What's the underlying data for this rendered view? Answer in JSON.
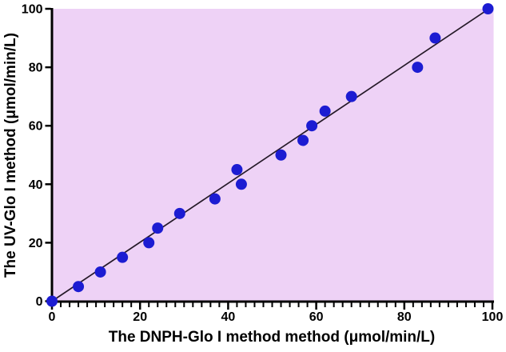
{
  "chart_data": {
    "type": "scatter",
    "title": "",
    "xlabel": "The DNPH-Glo I method method (μmol/min/L)",
    "ylabel": "The UV-Glo I method (μmol/min/L)",
    "x": [
      0,
      6,
      11,
      16,
      22,
      24,
      29,
      37,
      42,
      43,
      52,
      57,
      59,
      62,
      68,
      83,
      87,
      99
    ],
    "y": [
      0,
      5,
      10,
      15,
      20,
      25,
      30,
      35,
      45,
      40,
      50,
      55,
      60,
      65,
      70,
      80,
      90,
      100
    ],
    "xlim": [
      0,
      100
    ],
    "ylim": [
      0,
      100
    ],
    "x_major_ticks": [
      0,
      20,
      40,
      60,
      80,
      100
    ],
    "y_major_ticks": [
      0,
      20,
      40,
      60,
      80,
      100
    ],
    "x_minor_tick_step": 2,
    "grid": false,
    "legend": false,
    "fit_line": {
      "x1": 0,
      "y1": 0,
      "x2": 100,
      "y2": 100.8
    },
    "marker": {
      "shape": "circle",
      "radius_px": 7
    },
    "colors": {
      "point_fill": "#1c1cd2",
      "plot_background": "#eed2f6",
      "fit_line": "#251a28",
      "axis": "#000000",
      "page_background": "#ffffff"
    }
  }
}
